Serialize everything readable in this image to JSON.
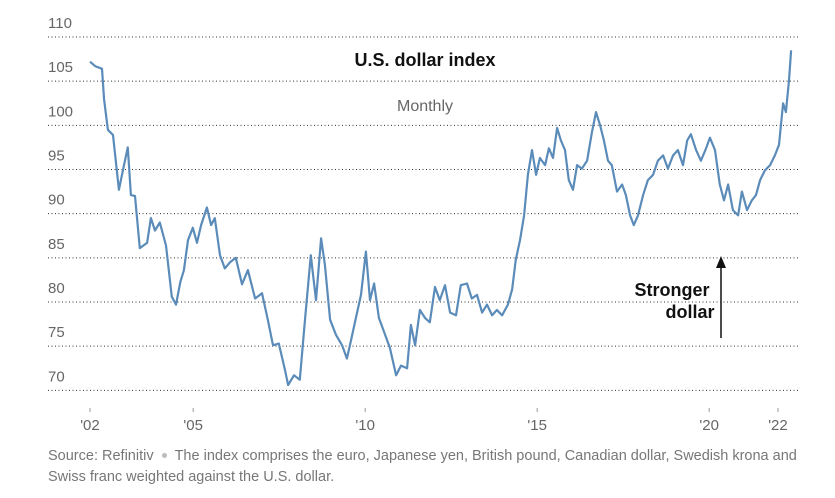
{
  "chart_data": {
    "type": "line",
    "title": "U.S. dollar index",
    "subtitle": "Monthly",
    "annotation": [
      "Stronger",
      "dollar"
    ],
    "source": "Source: Refinitiv",
    "note": "The index comprises the euro, Japanese yen, British pound, Canadian dollar, Swedish krona and Swiss franc weighted against the U.S. dollar.",
    "xlim": [
      2000.78,
      2022.64
    ],
    "ylim": [
      68,
      110
    ],
    "yticks": [
      70,
      75,
      80,
      85,
      90,
      95,
      100,
      105,
      110
    ],
    "xticks": [
      {
        "value": 2002,
        "label": "'02"
      },
      {
        "value": 2005,
        "label": "'05"
      },
      {
        "value": 2010,
        "label": "'10"
      },
      {
        "value": 2015,
        "label": "'15"
      },
      {
        "value": 2020,
        "label": "'20"
      },
      {
        "value": 2022,
        "label": "'22"
      }
    ],
    "grid": true,
    "series": [
      {
        "name": "U.S. dollar index",
        "color": "#5b8cb9",
        "x": [
          2002.0,
          2002.15,
          2002.35,
          2002.41,
          2002.52,
          2002.67,
          2002.84,
          2002.99,
          2003.1,
          2003.19,
          2003.31,
          2003.45,
          2003.66,
          2003.77,
          2003.89,
          2004.03,
          2004.21,
          2004.38,
          2004.5,
          2004.63,
          2004.73,
          2004.85,
          2004.99,
          2005.11,
          2005.23,
          2005.4,
          2005.52,
          2005.63,
          2005.78,
          2005.92,
          2006.07,
          2006.24,
          2006.42,
          2006.59,
          2006.8,
          2007.0,
          2007.17,
          2007.32,
          2007.49,
          2007.67,
          2007.76,
          2007.93,
          2008.1,
          2008.25,
          2008.42,
          2008.57,
          2008.72,
          2008.83,
          2008.98,
          2009.15,
          2009.33,
          2009.47,
          2009.59,
          2009.73,
          2009.88,
          2010.02,
          2010.14,
          2010.26,
          2010.4,
          2010.58,
          2010.72,
          2010.9,
          2011.04,
          2011.22,
          2011.33,
          2011.45,
          2011.59,
          2011.74,
          2011.88,
          2012.03,
          2012.17,
          2012.32,
          2012.47,
          2012.64,
          2012.78,
          2012.96,
          2013.1,
          2013.25,
          2013.4,
          2013.54,
          2013.69,
          2013.83,
          2013.98,
          2014.15,
          2014.27,
          2014.38,
          2014.5,
          2014.62,
          2014.73,
          2014.85,
          2014.97,
          2015.08,
          2015.23,
          2015.34,
          2015.46,
          2015.58,
          2015.69,
          2015.81,
          2015.92,
          2016.04,
          2016.16,
          2016.3,
          2016.45,
          2016.59,
          2016.71,
          2016.83,
          2016.94,
          2017.06,
          2017.17,
          2017.32,
          2017.47,
          2017.58,
          2017.7,
          2017.81,
          2017.93,
          2018.08,
          2018.22,
          2018.37,
          2018.51,
          2018.66,
          2018.8,
          2018.95,
          2019.09,
          2019.24,
          2019.36,
          2019.47,
          2019.62,
          2019.76,
          2019.91,
          2020.02,
          2020.17,
          2020.31,
          2020.43,
          2020.55,
          2020.69,
          2020.84,
          2020.95,
          2021.1,
          2021.24,
          2021.36,
          2021.48,
          2021.62,
          2021.77,
          2021.91,
          2022.03,
          2022.15,
          2022.23,
          2022.32,
          2022.38
        ],
        "values": [
          107.2,
          106.7,
          106.4,
          102.9,
          99.5,
          98.9,
          92.7,
          95.5,
          97.5,
          92.1,
          92.0,
          86.1,
          86.7,
          89.5,
          88.1,
          89.0,
          86.4,
          80.6,
          79.7,
          82.3,
          83.6,
          87.0,
          88.4,
          86.7,
          88.7,
          90.7,
          88.7,
          89.5,
          85.3,
          83.8,
          84.5,
          85.0,
          82.0,
          83.6,
          80.4,
          81.0,
          78.0,
          75.1,
          75.3,
          72.3,
          70.6,
          71.7,
          71.2,
          78.0,
          85.3,
          80.2,
          87.2,
          84.2,
          78.0,
          76.3,
          75.1,
          73.6,
          75.7,
          78.2,
          80.8,
          85.7,
          80.2,
          82.1,
          78.2,
          76.3,
          74.8,
          71.7,
          72.8,
          72.5,
          77.4,
          75.1,
          79.1,
          78.2,
          77.7,
          81.7,
          80.2,
          81.9,
          78.8,
          78.5,
          81.9,
          82.1,
          80.4,
          80.8,
          78.8,
          79.7,
          78.5,
          79.1,
          78.5,
          79.7,
          81.4,
          84.8,
          87.0,
          89.8,
          94.4,
          97.2,
          94.4,
          96.3,
          95.5,
          97.4,
          96.3,
          99.7,
          98.3,
          97.2,
          93.8,
          92.7,
          95.5,
          95.1,
          96.0,
          99.2,
          101.5,
          100.0,
          98.3,
          96.0,
          95.5,
          92.5,
          93.3,
          92.1,
          89.8,
          88.7,
          89.8,
          92.1,
          93.8,
          94.4,
          96.0,
          96.6,
          95.1,
          96.6,
          97.2,
          95.5,
          98.3,
          99.0,
          97.2,
          96.0,
          97.4,
          98.6,
          97.2,
          93.3,
          91.5,
          93.3,
          90.4,
          89.8,
          92.5,
          90.4,
          91.5,
          92.1,
          93.8,
          94.9,
          95.5,
          96.6,
          97.8,
          102.5,
          101.5,
          105.1,
          108.5
        ]
      }
    ]
  }
}
